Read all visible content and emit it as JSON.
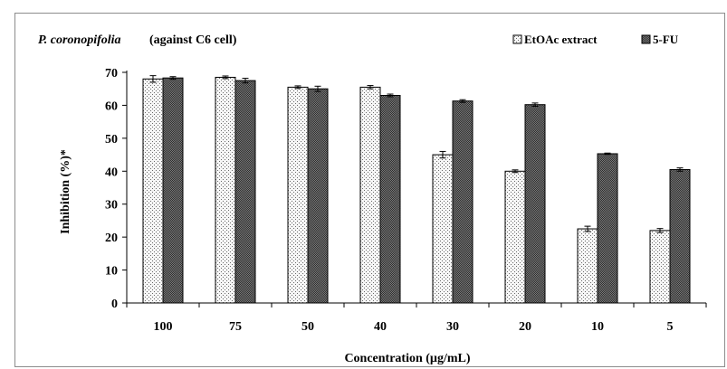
{
  "chart_data": {
    "type": "bar",
    "title_species": "P. coronopifolia",
    "title_rest": "(against C6 cell)",
    "xlabel": "Concentration (µg/mL)",
    "ylabel": "Inhibition (%)*",
    "categories": [
      "100",
      "75",
      "50",
      "40",
      "30",
      "20",
      "10",
      "5"
    ],
    "ylim": [
      0,
      70
    ],
    "yticks": [
      0,
      10,
      20,
      30,
      40,
      50,
      60,
      70
    ],
    "grid": false,
    "legend_position": "top-right",
    "series": [
      {
        "name": "EtOAc extract",
        "pattern": "dotted-light",
        "values": [
          68.0,
          68.5,
          65.5,
          65.5,
          45.0,
          40.0,
          22.5,
          22.0
        ],
        "errors": [
          1.0,
          0.4,
          0.4,
          0.5,
          1.0,
          0.4,
          0.8,
          0.6
        ]
      },
      {
        "name": "5-FU",
        "pattern": "dark-checker",
        "values": [
          68.3,
          67.5,
          65.0,
          63.0,
          61.3,
          60.2,
          45.3,
          40.5
        ],
        "errors": [
          0.4,
          0.7,
          0.8,
          0.4,
          0.4,
          0.5,
          0.2,
          0.5
        ]
      }
    ],
    "colors": {
      "bar_stroke": "#000000",
      "light_fill": "#f4f4f4",
      "dark_fill": "#3c3c3c"
    }
  }
}
